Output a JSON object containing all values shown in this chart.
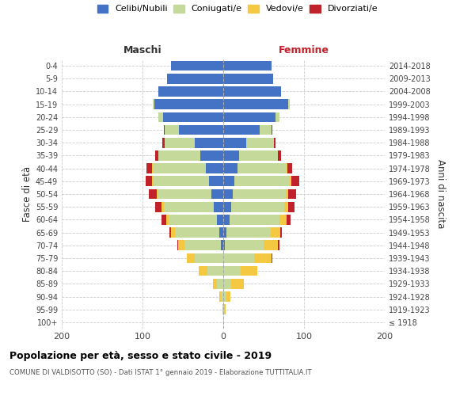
{
  "age_groups": [
    "100+",
    "95-99",
    "90-94",
    "85-89",
    "80-84",
    "75-79",
    "70-74",
    "65-69",
    "60-64",
    "55-59",
    "50-54",
    "45-49",
    "40-44",
    "35-39",
    "30-34",
    "25-29",
    "20-24",
    "15-19",
    "10-14",
    "5-9",
    "0-4"
  ],
  "birth_years": [
    "≤ 1918",
    "1919-1923",
    "1924-1928",
    "1929-1933",
    "1934-1938",
    "1939-1943",
    "1944-1948",
    "1949-1953",
    "1954-1958",
    "1959-1963",
    "1964-1968",
    "1969-1973",
    "1974-1978",
    "1979-1983",
    "1984-1988",
    "1989-1993",
    "1994-1998",
    "1999-2003",
    "2004-2008",
    "2009-2013",
    "2014-2018"
  ],
  "m_cel": [
    0,
    0,
    0,
    0,
    0,
    0,
    3,
    5,
    8,
    12,
    15,
    18,
    22,
    28,
    35,
    55,
    75,
    85,
    80,
    70,
    65
  ],
  "m_con": [
    0,
    1,
    3,
    8,
    20,
    35,
    45,
    55,
    60,
    62,
    65,
    68,
    65,
    52,
    38,
    18,
    5,
    2,
    0,
    0,
    0
  ],
  "m_ved": [
    0,
    0,
    2,
    5,
    10,
    10,
    8,
    5,
    3,
    2,
    2,
    2,
    1,
    0,
    0,
    0,
    0,
    0,
    0,
    0,
    0
  ],
  "m_div": [
    0,
    0,
    0,
    0,
    0,
    0,
    1,
    2,
    5,
    8,
    10,
    8,
    7,
    4,
    2,
    1,
    0,
    0,
    0,
    0,
    0
  ],
  "f_nub": [
    0,
    0,
    0,
    0,
    0,
    0,
    2,
    4,
    8,
    10,
    12,
    14,
    18,
    20,
    28,
    45,
    65,
    80,
    72,
    62,
    60
  ],
  "f_con": [
    0,
    1,
    4,
    10,
    22,
    38,
    48,
    55,
    62,
    65,
    65,
    68,
    60,
    48,
    35,
    15,
    5,
    2,
    0,
    0,
    0
  ],
  "f_ved": [
    0,
    2,
    5,
    15,
    20,
    22,
    18,
    12,
    8,
    5,
    3,
    2,
    1,
    0,
    0,
    0,
    0,
    0,
    0,
    0,
    0
  ],
  "f_div": [
    0,
    0,
    0,
    0,
    0,
    1,
    2,
    2,
    5,
    8,
    10,
    10,
    6,
    4,
    2,
    1,
    0,
    0,
    0,
    0,
    0
  ],
  "color_celibi": "#4472C4",
  "color_coniugati": "#C5D99B",
  "color_vedovi": "#F5C842",
  "color_divorziati": "#C0212B",
  "xlim": 200,
  "title": "Popolazione per età, sesso e stato civile - 2019",
  "subtitle": "COMUNE DI VALDISOTTO (SO) - Dati ISTAT 1° gennaio 2019 - Elaborazione TUTTITALIA.IT",
  "ylabel_left": "Fasce di età",
  "ylabel_right": "Anni di nascita",
  "xlabel_left": "Maschi",
  "xlabel_right": "Femmine"
}
